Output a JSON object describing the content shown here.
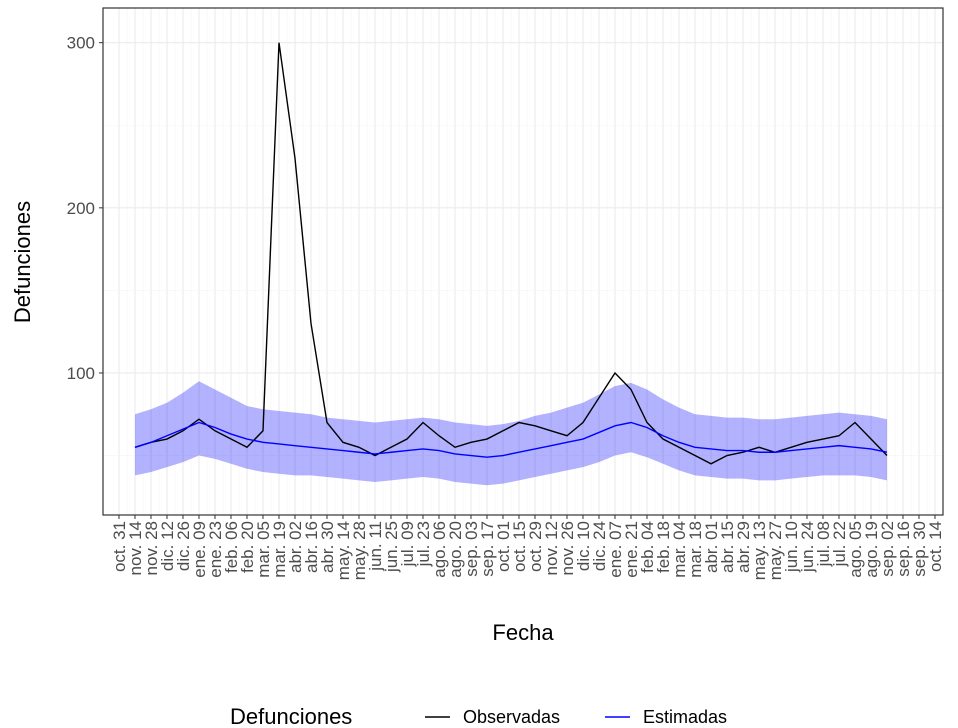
{
  "chart_data": {
    "type": "line",
    "x_label": "Fecha",
    "y_label": "Defunciones",
    "legend_title": "Defunciones",
    "legend_position": "bottom",
    "grid": true,
    "categories": [
      "oct. 31",
      "nov. 14",
      "nov. 28",
      "dic. 12",
      "dic. 26",
      "ene. 09",
      "ene. 23",
      "feb. 06",
      "feb. 20",
      "mar. 05",
      "mar. 19",
      "abr. 02",
      "abr. 16",
      "abr. 30",
      "may. 14",
      "may. 28",
      "jun. 11",
      "jun. 25",
      "jul. 09",
      "jul. 23",
      "ago. 06",
      "ago. 20",
      "sep. 03",
      "sep. 17",
      "oct. 01",
      "oct. 15",
      "oct. 29",
      "nov. 12",
      "nov. 26",
      "dic. 10",
      "dic. 24",
      "ene. 07",
      "ene. 21",
      "feb. 04",
      "feb. 18",
      "mar. 04",
      "mar. 18",
      "abr. 01",
      "abr. 15",
      "abr. 29",
      "may. 13",
      "may. 27",
      "jun. 10",
      "jun. 24",
      "jul. 08",
      "jul. 22",
      "ago. 05",
      "ago. 19",
      "sep. 02",
      "sep. 16",
      "sep. 30",
      "oct. 14"
    ],
    "series": [
      {
        "name": "Observadas",
        "color": "#000000",
        "values": [
          null,
          55,
          58,
          60,
          65,
          72,
          65,
          60,
          55,
          65,
          300,
          230,
          130,
          70,
          58,
          55,
          50,
          55,
          60,
          70,
          62,
          55,
          58,
          60,
          65,
          70,
          68,
          65,
          62,
          70,
          85,
          100,
          90,
          70,
          60,
          55,
          50,
          45,
          50,
          52,
          55,
          52,
          55,
          58,
          60,
          62,
          70,
          60,
          50,
          null,
          null,
          null
        ]
      },
      {
        "name": "Estimadas",
        "color": "#0000ff",
        "values": [
          null,
          55,
          58,
          62,
          66,
          70,
          67,
          63,
          60,
          58,
          57,
          56,
          55,
          54,
          53,
          52,
          51,
          52,
          53,
          54,
          53,
          51,
          50,
          49,
          50,
          52,
          54,
          56,
          58,
          60,
          64,
          68,
          70,
          67,
          62,
          58,
          55,
          54,
          53,
          53,
          52,
          52,
          53,
          54,
          55,
          56,
          55,
          54,
          52,
          null,
          null,
          null
        ]
      }
    ],
    "band": {
      "color": "#0000ff",
      "lower": [
        null,
        38,
        40,
        43,
        46,
        50,
        48,
        45,
        42,
        40,
        39,
        38,
        38,
        37,
        36,
        35,
        34,
        35,
        36,
        37,
        36,
        34,
        33,
        32,
        33,
        35,
        37,
        39,
        41,
        43,
        46,
        50,
        52,
        49,
        45,
        41,
        38,
        37,
        36,
        36,
        35,
        35,
        36,
        37,
        38,
        38,
        38,
        37,
        35,
        null,
        null,
        null
      ],
      "upper": [
        null,
        75,
        78,
        82,
        88,
        95,
        90,
        85,
        80,
        78,
        77,
        76,
        75,
        73,
        72,
        71,
        70,
        71,
        72,
        73,
        72,
        70,
        69,
        68,
        69,
        71,
        74,
        76,
        79,
        82,
        87,
        92,
        94,
        90,
        84,
        79,
        75,
        74,
        73,
        73,
        72,
        72,
        73,
        74,
        75,
        76,
        75,
        74,
        72,
        null,
        null,
        null
      ]
    },
    "ylim": [
      14,
      321
    ],
    "yticks": [
      100,
      200,
      300
    ]
  }
}
